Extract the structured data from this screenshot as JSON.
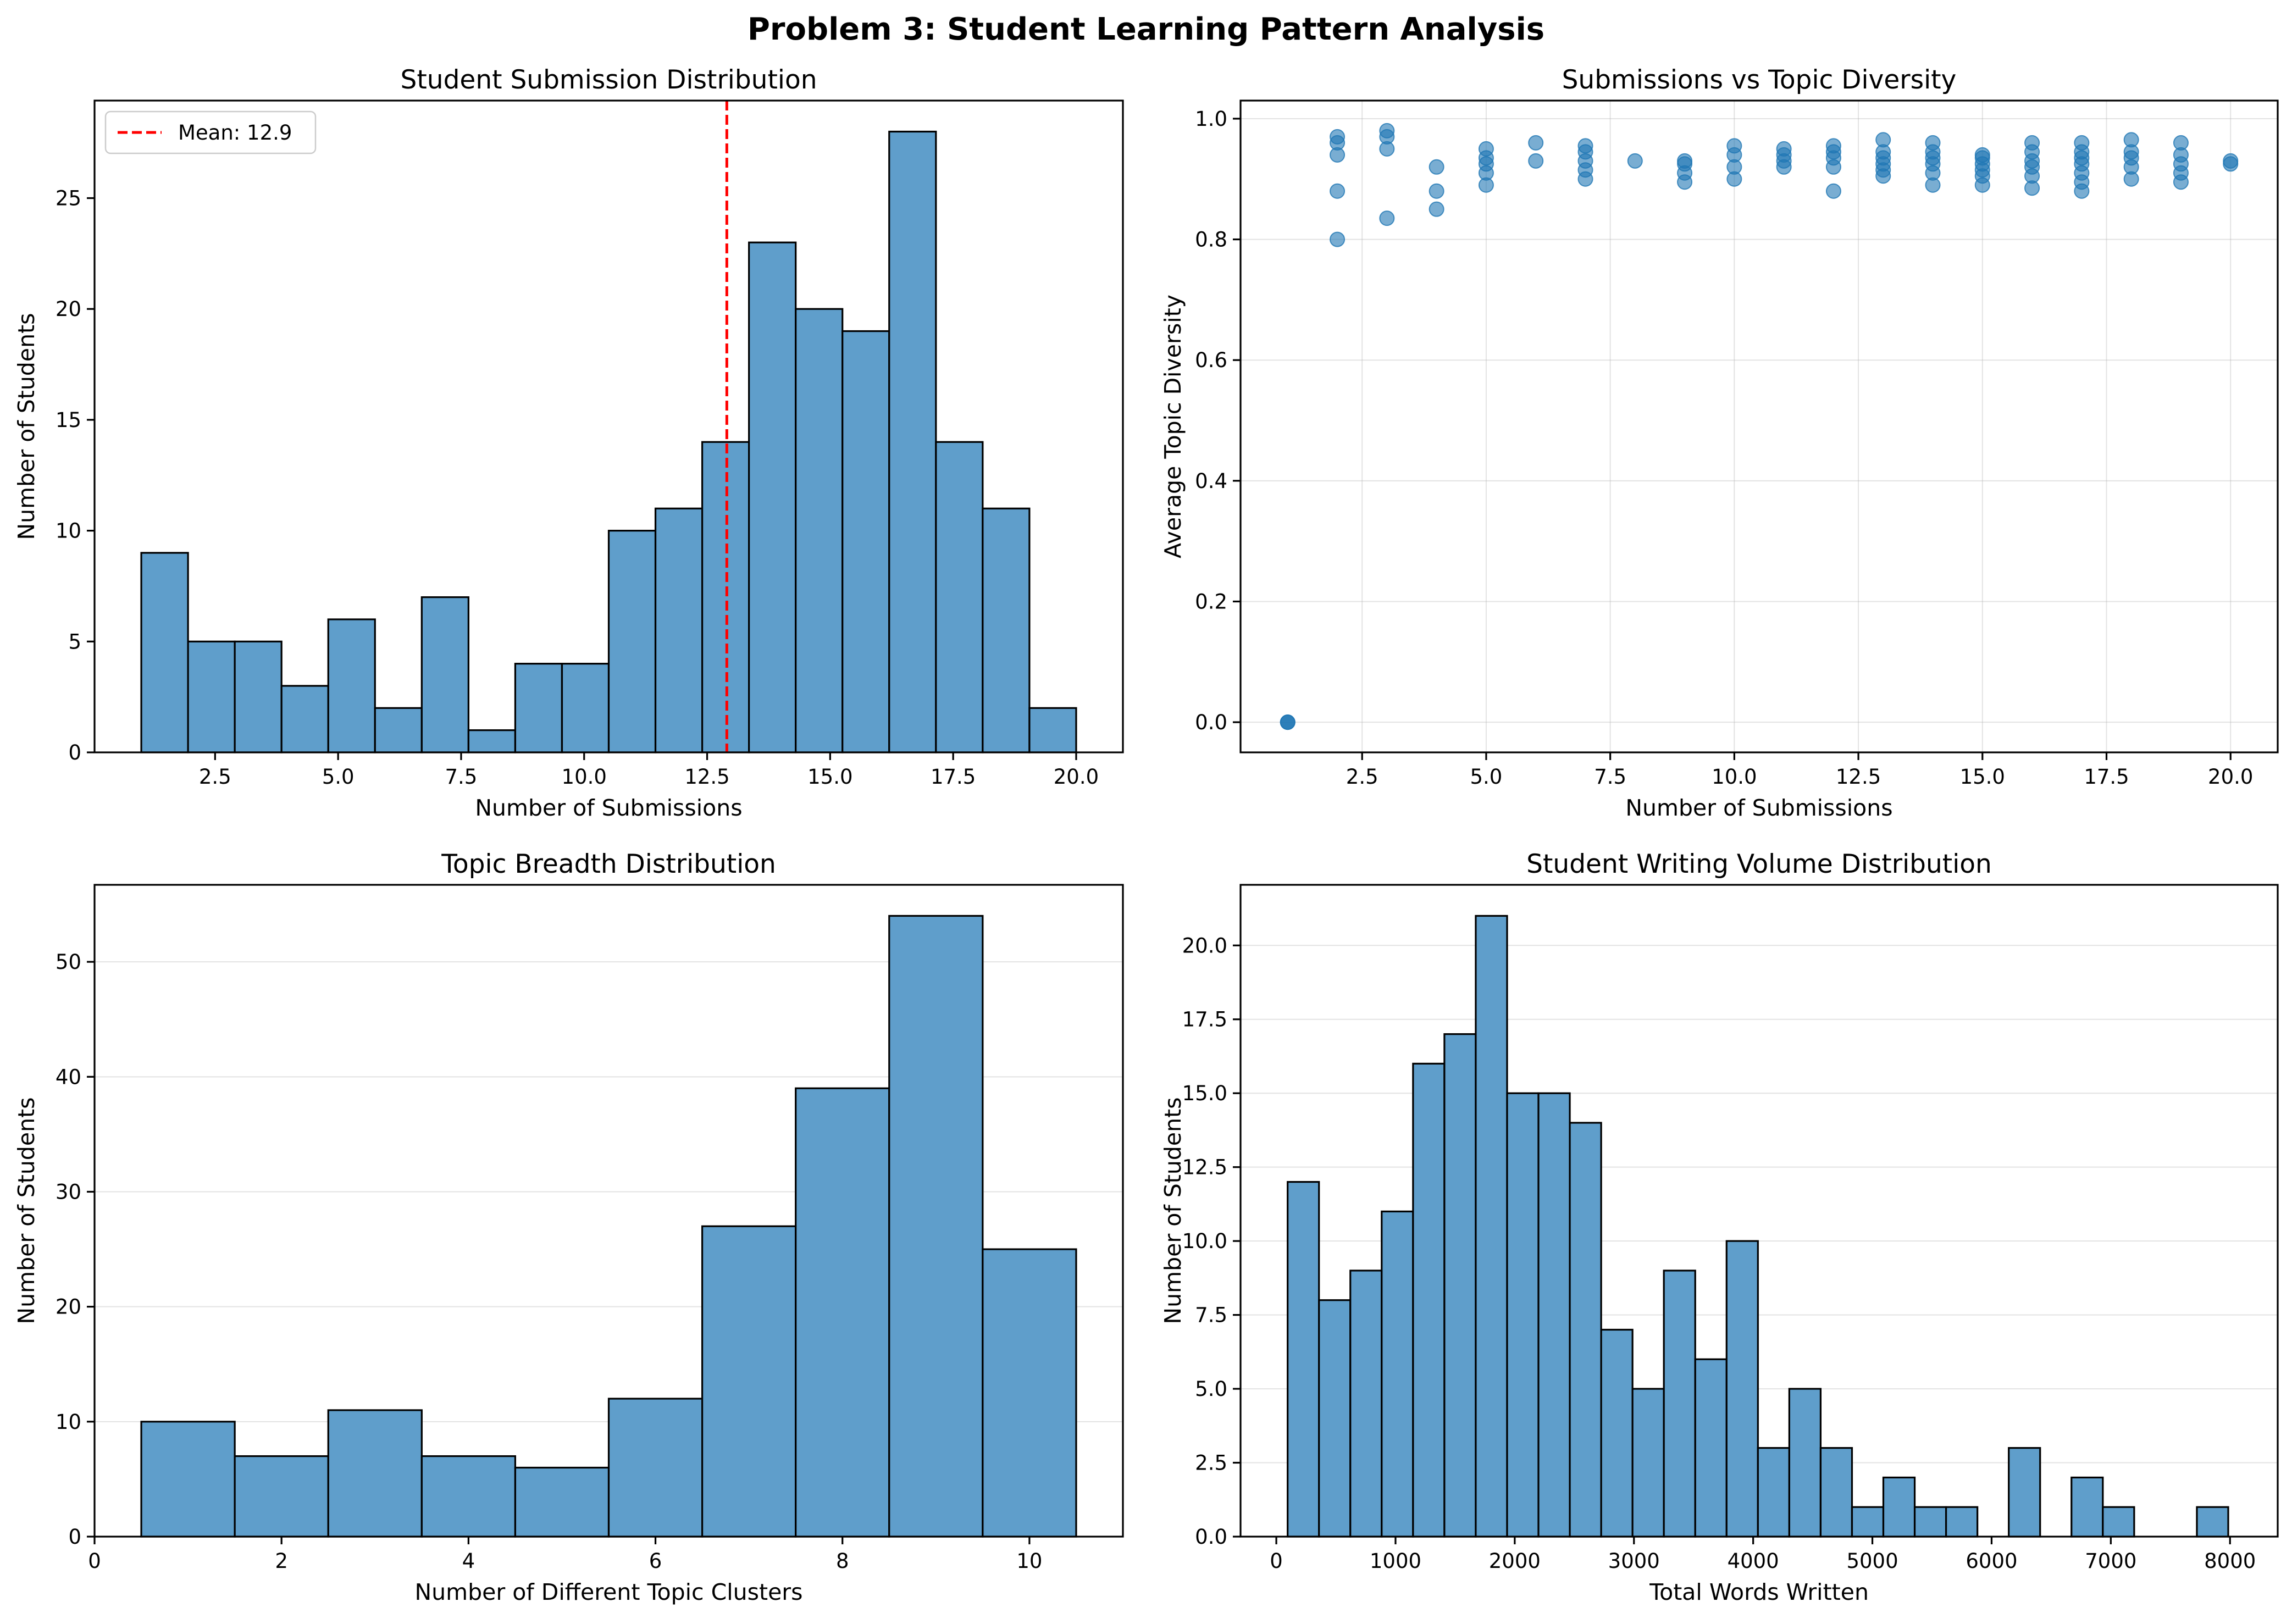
{
  "figure": {
    "title": "Problem 3: Student Learning Pattern Analysis"
  },
  "chart_data": [
    {
      "id": "submissions",
      "type": "bar",
      "title": "Student Submission Distribution",
      "xlabel": "Number of Submissions",
      "ylabel": "Number of Students",
      "xlim": [
        0.05,
        20.95
      ],
      "ylim": [
        0,
        29.4
      ],
      "xticks": [
        2.5,
        5.0,
        7.5,
        10.0,
        12.5,
        15.0,
        17.5,
        20.0
      ],
      "xtick_labels": [
        "2.5",
        "5.0",
        "7.5",
        "10.0",
        "12.5",
        "15.0",
        "17.5",
        "20.0"
      ],
      "yticks": [
        0,
        5,
        10,
        15,
        20,
        25
      ],
      "ytick_labels": [
        "0",
        "5",
        "10",
        "15",
        "20",
        "25"
      ],
      "grid": false,
      "bin_edges": [
        1.0,
        1.95,
        2.9,
        3.85,
        4.8,
        5.75,
        6.7,
        7.65,
        8.6,
        9.55,
        10.5,
        11.45,
        12.4,
        13.35,
        14.3,
        15.25,
        16.2,
        17.15,
        18.1,
        19.05,
        20.0
      ],
      "values": [
        9,
        5,
        5,
        3,
        6,
        2,
        7,
        1,
        4,
        4,
        10,
        11,
        14,
        23,
        20,
        19,
        28,
        14,
        11,
        2
      ],
      "mean_line": {
        "value": 12.9,
        "label": "Mean: 12.9",
        "color": "#ff0000"
      },
      "legend": {
        "position": "upper left"
      },
      "bar_color": "#5f9ecb",
      "edge_color": "#000000"
    },
    {
      "id": "diversity",
      "type": "scatter",
      "title": "Submissions vs Topic Diversity",
      "xlabel": "Number of Submissions",
      "ylabel": "Average Topic Diversity",
      "xlim": [
        0.05,
        20.95
      ],
      "ylim": [
        -0.05,
        1.03
      ],
      "xticks": [
        2.5,
        5.0,
        7.5,
        10.0,
        12.5,
        15.0,
        17.5,
        20.0
      ],
      "xtick_labels": [
        "2.5",
        "5.0",
        "7.5",
        "10.0",
        "12.5",
        "15.0",
        "17.5",
        "20.0"
      ],
      "yticks": [
        0.0,
        0.2,
        0.4,
        0.6,
        0.8,
        1.0
      ],
      "ytick_labels": [
        "0.0",
        "0.2",
        "0.4",
        "0.6",
        "0.8",
        "1.0"
      ],
      "grid": true,
      "point_color": "#1f77b4",
      "points": [
        [
          1,
          0.0
        ],
        [
          1,
          0.0
        ],
        [
          1,
          0.0
        ],
        [
          2,
          0.97
        ],
        [
          2,
          0.96
        ],
        [
          2,
          0.94
        ],
        [
          2,
          0.88
        ],
        [
          2,
          0.8
        ],
        [
          3,
          0.98
        ],
        [
          3,
          0.97
        ],
        [
          3,
          0.95
        ],
        [
          3,
          0.835
        ],
        [
          4,
          0.92
        ],
        [
          4,
          0.88
        ],
        [
          4,
          0.85
        ],
        [
          5,
          0.95
        ],
        [
          5,
          0.935
        ],
        [
          5,
          0.925
        ],
        [
          5,
          0.91
        ],
        [
          5,
          0.89
        ],
        [
          6,
          0.96
        ],
        [
          6,
          0.93
        ],
        [
          7,
          0.955
        ],
        [
          7,
          0.945
        ],
        [
          7,
          0.93
        ],
        [
          7,
          0.915
        ],
        [
          7,
          0.9
        ],
        [
          8,
          0.93
        ],
        [
          9,
          0.93
        ],
        [
          9,
          0.925
        ],
        [
          9,
          0.91
        ],
        [
          9,
          0.895
        ],
        [
          10,
          0.955
        ],
        [
          10,
          0.94
        ],
        [
          10,
          0.92
        ],
        [
          10,
          0.9
        ],
        [
          11,
          0.95
        ],
        [
          11,
          0.94
        ],
        [
          11,
          0.93
        ],
        [
          11,
          0.92
        ],
        [
          12,
          0.955
        ],
        [
          12,
          0.945
        ],
        [
          12,
          0.935
        ],
        [
          12,
          0.92
        ],
        [
          12,
          0.88
        ],
        [
          13,
          0.965
        ],
        [
          13,
          0.945
        ],
        [
          13,
          0.935
        ],
        [
          13,
          0.925
        ],
        [
          13,
          0.915
        ],
        [
          13,
          0.905
        ],
        [
          14,
          0.96
        ],
        [
          14,
          0.945
        ],
        [
          14,
          0.935
        ],
        [
          14,
          0.925
        ],
        [
          14,
          0.91
        ],
        [
          14,
          0.89
        ],
        [
          15,
          0.94
        ],
        [
          15,
          0.935
        ],
        [
          15,
          0.925
        ],
        [
          15,
          0.915
        ],
        [
          15,
          0.905
        ],
        [
          15,
          0.89
        ],
        [
          16,
          0.96
        ],
        [
          16,
          0.945
        ],
        [
          16,
          0.93
        ],
        [
          16,
          0.92
        ],
        [
          16,
          0.905
        ],
        [
          16,
          0.885
        ],
        [
          17,
          0.96
        ],
        [
          17,
          0.945
        ],
        [
          17,
          0.935
        ],
        [
          17,
          0.925
        ],
        [
          17,
          0.91
        ],
        [
          17,
          0.895
        ],
        [
          17,
          0.88
        ],
        [
          18,
          0.965
        ],
        [
          18,
          0.945
        ],
        [
          18,
          0.935
        ],
        [
          18,
          0.92
        ],
        [
          18,
          0.9
        ],
        [
          19,
          0.96
        ],
        [
          19,
          0.94
        ],
        [
          19,
          0.925
        ],
        [
          19,
          0.91
        ],
        [
          19,
          0.895
        ],
        [
          20,
          0.93
        ],
        [
          20,
          0.925
        ]
      ]
    },
    {
      "id": "breadth",
      "type": "bar",
      "title": "Topic Breadth Distribution",
      "xlabel": "Number of Different Topic Clusters",
      "ylabel": "Number of Students",
      "xlim": [
        0,
        11
      ],
      "ylim": [
        0,
        56.7
      ],
      "xticks": [
        0,
        2,
        4,
        6,
        8,
        10
      ],
      "xtick_labels": [
        "0",
        "2",
        "4",
        "6",
        "8",
        "10"
      ],
      "yticks": [
        0,
        10,
        20,
        30,
        40,
        50
      ],
      "ytick_labels": [
        "0",
        "10",
        "20",
        "30",
        "40",
        "50"
      ],
      "grid": true,
      "bin_edges": [
        0.5,
        1.5,
        2.5,
        3.5,
        4.5,
        5.5,
        6.5,
        7.5,
        8.5,
        9.5,
        10.5
      ],
      "values": [
        10,
        7,
        11,
        7,
        6,
        12,
        27,
        39,
        54,
        25
      ],
      "bar_color": "#5f9ecb",
      "edge_color": "#000000"
    },
    {
      "id": "volume",
      "type": "bar",
      "title": "Student Writing Volume Distribution",
      "xlabel": "Total Words Written",
      "ylabel": "Number of Students",
      "xlim": [
        -300,
        8400
      ],
      "ylim": [
        0,
        22.05
      ],
      "xticks": [
        0,
        1000,
        2000,
        3000,
        4000,
        5000,
        6000,
        7000,
        8000
      ],
      "xtick_labels": [
        "0",
        "1000",
        "2000",
        "3000",
        "4000",
        "5000",
        "6000",
        "7000",
        "8000"
      ],
      "yticks": [
        0.0,
        2.5,
        5.0,
        7.5,
        10.0,
        12.5,
        15.0,
        17.5,
        20.0
      ],
      "ytick_labels": [
        "0.0",
        "2.5",
        "5.0",
        "7.5",
        "10.0",
        "12.5",
        "15.0",
        "17.5",
        "20.0"
      ],
      "grid": true,
      "bin_edges": [
        95,
        358,
        621,
        884,
        1147,
        1410,
        1673,
        1936,
        2199,
        2462,
        2725,
        2988,
        3251,
        3514,
        3777,
        4040,
        4303,
        4566,
        4829,
        5092,
        5355,
        5618,
        5881,
        6144,
        6407,
        6670,
        6933,
        7196,
        7459,
        7722,
        7985
      ],
      "values": [
        12,
        8,
        9,
        11,
        16,
        17,
        21,
        15,
        15,
        14,
        7,
        5,
        9,
        6,
        10,
        3,
        5,
        3,
        1,
        2,
        1,
        1,
        0,
        3,
        0,
        2,
        1,
        0,
        0,
        1
      ],
      "bar_color": "#5f9ecb",
      "edge_color": "#000000"
    }
  ]
}
